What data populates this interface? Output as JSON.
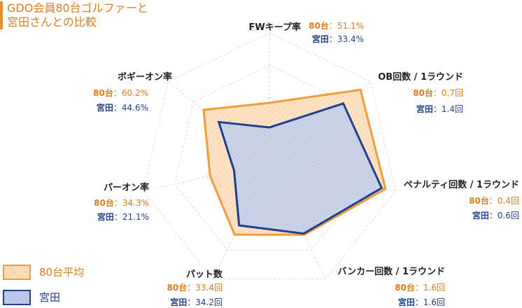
{
  "title": [
    "GDO会員80台ゴルファーと",
    "宮田さんとの比較"
  ],
  "colors": {
    "avg_stroke": "#f29d38",
    "avg_fill": "#fde3c4",
    "miyata_stroke": "#1f3f8f",
    "miyata_fill": "#c4d2ee",
    "avg_text": "#e07d1a",
    "miyata_text": "#1f3f8f"
  },
  "legend": [
    {
      "label": "80台平均",
      "series": "avg"
    },
    {
      "label": "宮田",
      "series": "miyata"
    }
  ],
  "chart_data": {
    "type": "radar",
    "axes": [
      {
        "label": "FWキープ率",
        "lines": [
          {
            "key": "80台",
            "sep": "：",
            "value": "51.1%"
          },
          {
            "key": "宮田",
            "sep": "：",
            "value": "33.4%"
          }
        ]
      },
      {
        "label": "OB回数 / 1ラウンド",
        "lines": [
          {
            "key": "80台",
            "sep": "：",
            "value": "0.7回"
          },
          {
            "key": "宮田",
            "sep": "：",
            "value": "1.4回"
          }
        ]
      },
      {
        "label": "ペナルティ回数 / 1ラウンド",
        "lines": [
          {
            "key": "80台",
            "sep": "：",
            "value": "0.4回"
          },
          {
            "key": "宮田",
            "sep": "：",
            "value": "0.6回"
          }
        ]
      },
      {
        "label": "バンカー回数 / 1ラウンド",
        "lines": [
          {
            "key": "80台",
            "sep": "：",
            "value": "1.6回"
          },
          {
            "key": "宮田",
            "sep": "：",
            "value": "1.6回"
          }
        ]
      },
      {
        "label": "パット数",
        "lines": [
          {
            "key": "80台",
            "sep": "：",
            "value": "33.4回"
          },
          {
            "key": "宮田",
            "sep": "：",
            "value": "34.2回"
          }
        ]
      },
      {
        "label": "パーオン率",
        "lines": [
          {
            "key": "80台",
            "sep": "：",
            "value": "34.3%"
          },
          {
            "key": "宮田",
            "sep": "：",
            "value": "21.1%"
          }
        ]
      },
      {
        "label": "ボギーオン率",
        "lines": [
          {
            "key": "80台",
            "sep": "：",
            "value": "60.2%"
          },
          {
            "key": "宮田",
            "sep": "：",
            "value": "44.6%"
          }
        ]
      }
    ],
    "series": [
      {
        "name": "80台平均",
        "values": [
          51.1,
          0.7,
          0.4,
          1.6,
          33.4,
          34.3,
          60.2
        ],
        "relative_level": [
          0.46,
          0.9,
          0.92,
          0.62,
          0.62,
          0.47,
          0.65
        ]
      },
      {
        "name": "宮田",
        "values": [
          33.4,
          1.4,
          0.6,
          1.6,
          34.2,
          21.1,
          44.6
        ],
        "relative_level": [
          0.27,
          0.73,
          0.89,
          0.61,
          0.54,
          0.28,
          0.5
        ]
      }
    ],
    "grid": true,
    "grid_levels": 4,
    "legend_position": "bottom-left"
  }
}
